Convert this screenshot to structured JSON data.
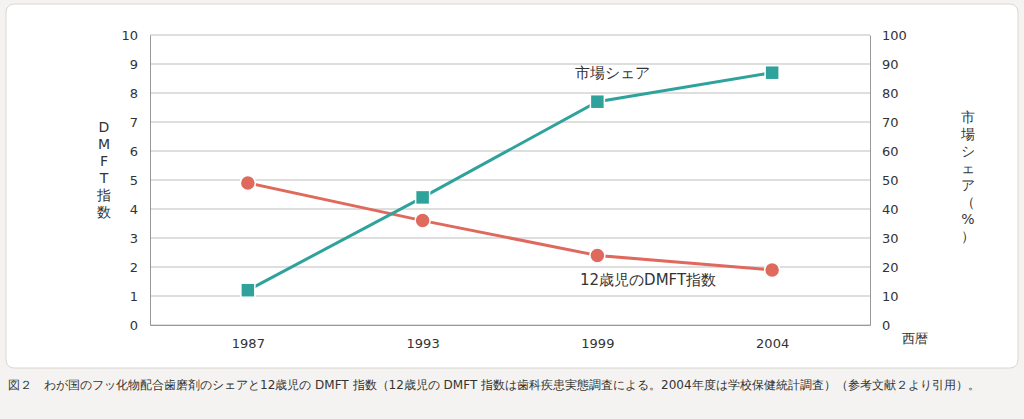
{
  "chart_data": {
    "type": "line",
    "caption": "図２　わが国のフッ化物配合歯磨剤のシェアと12歳児の DMFT 指数（12歳児の DMFT 指数は歯科疾患実態調査による。2004年度は学校保健統計調査）（参考文献２より引用）。",
    "xlabel": "西暦",
    "ylabel": "DMFT指数",
    "y2label": "市場シェア（%）",
    "categories": [
      "1987",
      "1993",
      "1999",
      "2004"
    ],
    "ylim": [
      0,
      10
    ],
    "yticks": [
      0,
      1,
      2,
      3,
      4,
      5,
      6,
      7,
      8,
      9,
      10
    ],
    "y2lim": [
      0,
      100
    ],
    "y2ticks": [
      0,
      10,
      20,
      30,
      40,
      50,
      60,
      70,
      80,
      90,
      100
    ],
    "grid": true,
    "series": [
      {
        "name": "12歳児のDMFT指数",
        "color": "#e0695e",
        "marker": "circle",
        "values": [
          4.9,
          3.6,
          2.4,
          1.9
        ]
      },
      {
        "name": "市場シェア",
        "color": "#2fa39b",
        "marker": "square",
        "axis": "y2",
        "values": [
          12,
          44,
          77,
          87
        ]
      }
    ]
  }
}
